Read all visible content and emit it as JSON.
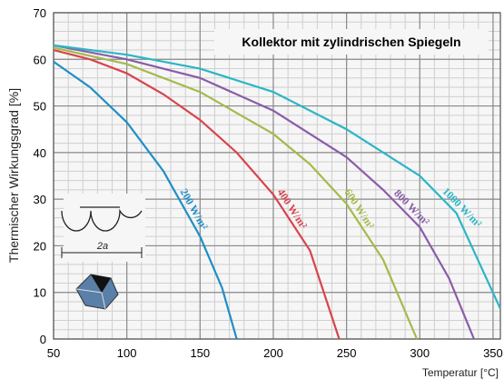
{
  "chart_data": {
    "type": "line",
    "title": "Kollektor mit zylindrischen Spiegeln",
    "ylabel": "Thermischer Wirkungsgrad [%]",
    "xlabel": "Temperatur [°C]",
    "diagram_label": "2a",
    "xlim": [
      50,
      355
    ],
    "ylim": [
      0,
      70
    ],
    "xticks": [
      50,
      100,
      150,
      200,
      250,
      300,
      350
    ],
    "yticks": [
      0,
      10,
      20,
      30,
      40,
      50,
      60,
      70
    ],
    "grid": true,
    "minor_grid": {
      "x": 10,
      "y": 2
    },
    "series": [
      {
        "name": "200 W/m²",
        "color": "#1f8ec6",
        "x": [
          50,
          75,
          100,
          125,
          150,
          165,
          175
        ],
        "values": [
          59.5,
          54,
          46.5,
          36,
          22,
          11,
          0
        ]
      },
      {
        "name": "400 W/m²",
        "color": "#d8444c",
        "x": [
          50,
          75,
          100,
          125,
          150,
          175,
          200,
          225,
          245
        ],
        "values": [
          62,
          60,
          57,
          52.5,
          47,
          40,
          31,
          19,
          0
        ]
      },
      {
        "name": "600 W/m²",
        "color": "#a4ba4c",
        "x": [
          50,
          100,
          150,
          200,
          225,
          250,
          275,
          298
        ],
        "values": [
          62.5,
          59,
          53,
          44,
          37.5,
          29,
          17,
          0
        ]
      },
      {
        "name": "800 W/m²",
        "color": "#8a5ca8",
        "x": [
          50,
          100,
          150,
          200,
          250,
          275,
          300,
          320,
          337
        ],
        "values": [
          63,
          60,
          56,
          49,
          39,
          32,
          24,
          13,
          0
        ]
      },
      {
        "name": "1000 W/m²",
        "color": "#2ab6c6",
        "x": [
          50,
          100,
          150,
          200,
          250,
          300,
          325,
          355
        ],
        "values": [
          63,
          61,
          58,
          53,
          45,
          35,
          27,
          6.5
        ]
      }
    ]
  }
}
